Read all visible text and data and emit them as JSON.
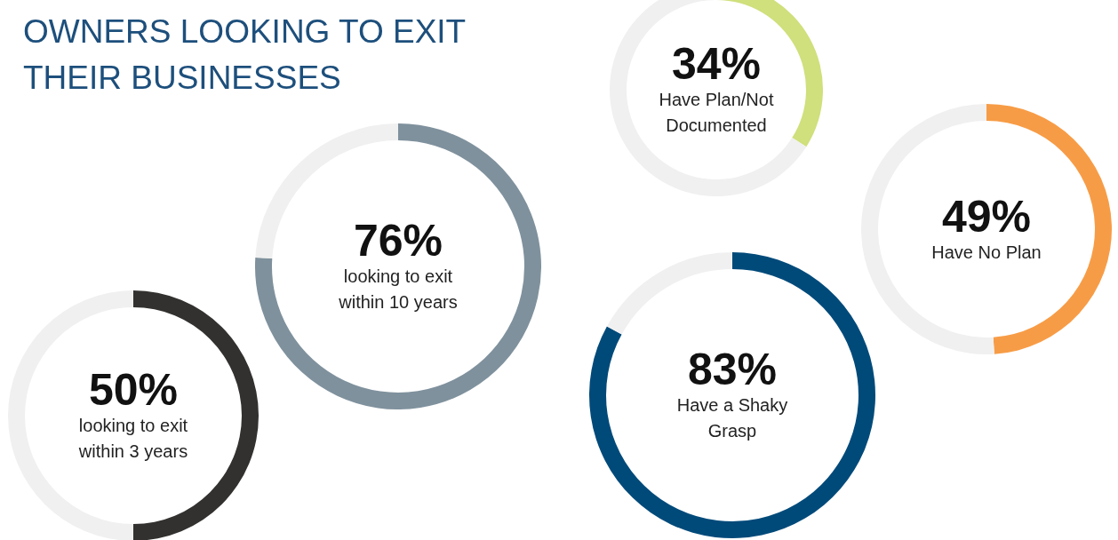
{
  "chart_data": [
    {
      "type": "other",
      "title": "OWNERS LOOKING TO EXIT THEIR BUSINESSES"
    },
    {
      "type": "donut",
      "categories": [
        "looking to exit within 3 years",
        null
      ],
      "values": [
        50,
        50
      ],
      "colors": [
        "#32312f",
        "#f0f0f0"
      ],
      "value_labels": [
        "50%",
        null
      ]
    },
    {
      "type": "donut",
      "categories": [
        "looking to exit within 10 years",
        null
      ],
      "values": [
        76,
        24
      ],
      "colors": [
        "#7f919d",
        "#f0f0f0"
      ],
      "value_labels": [
        "76%",
        null
      ]
    },
    {
      "type": "donut",
      "categories": [
        "Have Plan/Not Documented",
        null
      ],
      "values": [
        34,
        66
      ],
      "colors": [
        "#cfe07c",
        "#f0f0f0"
      ],
      "value_labels": [
        "34%",
        null
      ]
    },
    {
      "type": "donut",
      "categories": [
        "Have a Shaky Grasp",
        null
      ],
      "values": [
        83,
        17
      ],
      "colors": [
        "#004a7a",
        "#f0f0f0"
      ],
      "value_labels": [
        "83%",
        null
      ]
    },
    {
      "type": "donut",
      "categories": [
        "Have No Plan",
        null
      ],
      "values": [
        49,
        51
      ],
      "colors": [
        "#f79c46",
        "#f0f0f0"
      ],
      "value_labels": [
        "49%",
        null
      ]
    }
  ]
}
